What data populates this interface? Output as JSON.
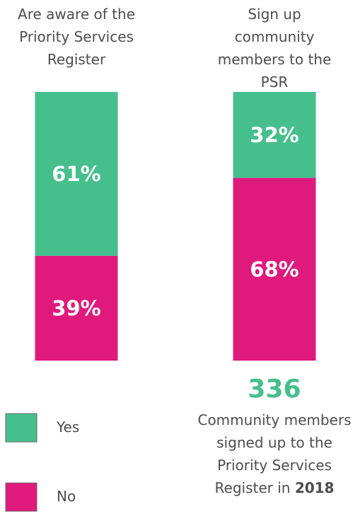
{
  "chart_data": {
    "type": "bar",
    "stacked": true,
    "categories": [
      "Are aware of the Priority Services Register",
      "Sign up community members to the PSR"
    ],
    "series": [
      {
        "name": "Yes",
        "color": "#45bf8c",
        "values": [
          61,
          32
        ],
        "value_labels": [
          "61%",
          "32%"
        ]
      },
      {
        "name": "No",
        "color": "#e0197d",
        "values": [
          39,
          68
        ],
        "value_labels": [
          "39%",
          "68%"
        ]
      }
    ],
    "ylim": [
      0,
      100
    ],
    "annotation": {
      "number": "336",
      "text": "Community members signed up to the Priority Services Register in",
      "year": "2018"
    }
  }
}
